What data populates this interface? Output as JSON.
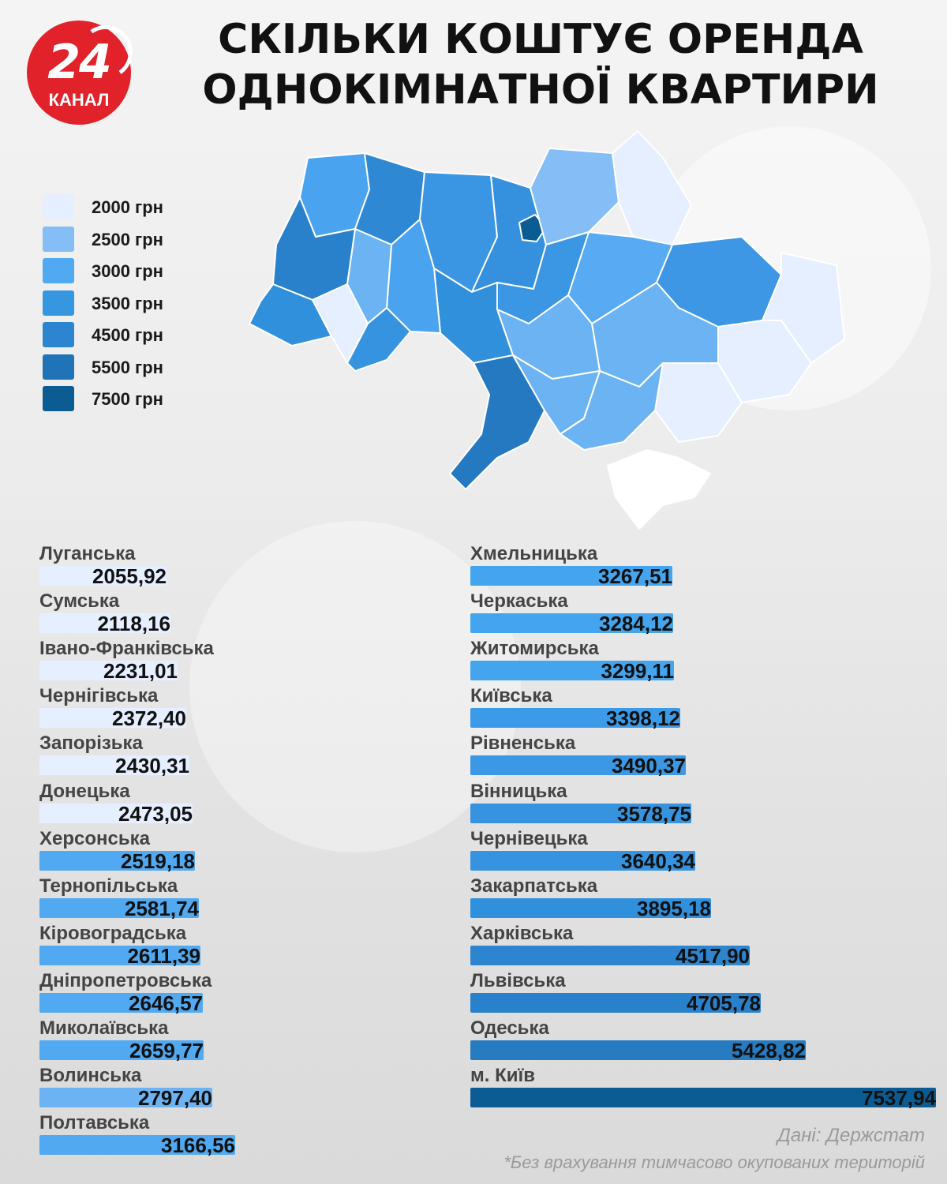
{
  "logo": {
    "number": "24",
    "subtitle": "КАНАЛ"
  },
  "title": {
    "line1": "СКІЛЬКИ КОШТУЄ ОРЕНДА",
    "line2": "ОДНОКІМНАТНОЇ КВАРТИРИ"
  },
  "legend": [
    {
      "label": "2000 грн",
      "color": "#e6efff"
    },
    {
      "label": "2500 грн",
      "color": "#85bdf6"
    },
    {
      "label": "3000 грн",
      "color": "#51a9f1"
    },
    {
      "label": "3500 грн",
      "color": "#3696e0"
    },
    {
      "label": "4500 грн",
      "color": "#2d85cf"
    },
    {
      "label": "5500 грн",
      "color": "#1f73b6"
    },
    {
      "label": "7500 грн",
      "color": "#0b5c92"
    }
  ],
  "chart_data": {
    "type": "bar",
    "orientation": "horizontal",
    "categories": [
      "Луганська",
      "Сумська",
      "Івано-Франківська",
      "Чернігівська",
      "Запорізька",
      "Донецька",
      "Херсонська",
      "Тернопільська",
      "Кіровоградська",
      "Дніпропетровська",
      "Миколаївська",
      "Волинська",
      "Полтавська",
      "Хмельницька",
      "Черкаська",
      "Житомирська",
      "Київська",
      "Рівненська",
      "Вінницька",
      "Чернівецька",
      "Закарпатська",
      "Харківська",
      "Львівська",
      "Одеська",
      "м. Київ"
    ],
    "values": [
      2055.92,
      2118.16,
      2231.01,
      2372.4,
      2430.31,
      2473.05,
      2519.18,
      2581.74,
      2611.39,
      2646.57,
      2659.77,
      2797.4,
      3166.56,
      3267.51,
      3284.12,
      3299.11,
      3398.12,
      3490.37,
      3578.75,
      3640.34,
      3895.18,
      4517.9,
      4705.78,
      5428.82,
      7537.94
    ],
    "value_labels": [
      "2055,92",
      "2118,16",
      "2231,01",
      "2372,40",
      "2430,31",
      "2473,05",
      "2519,18",
      "2581,74",
      "2611,39",
      "2646,57",
      "2659,77",
      "2797,40",
      "3166,56",
      "3267,51",
      "3284,12",
      "3299,11",
      "3398,12",
      "3490,37",
      "3578,75",
      "3640,34",
      "3895,18",
      "4517,90",
      "4705,78",
      "5428,82",
      "7537,94"
    ],
    "bar_colors": [
      "#e6efff",
      "#e6efff",
      "#e6efff",
      "#e6efff",
      "#e6efff",
      "#e6efff",
      "#51a9f1",
      "#51a9f1",
      "#51a9f1",
      "#51a9f1",
      "#51a9f1",
      "#6cb3f4",
      "#51a9f1",
      "#44a4ee",
      "#44a4ee",
      "#44a4ee",
      "#3c9be8",
      "#3a98e5",
      "#3693e0",
      "#3693e0",
      "#3190dc",
      "#2d85cf",
      "#2a81cb",
      "#267bc1",
      "#0b5c92"
    ],
    "title": "СКІЛЬКИ КОШТУЄ ОРЕНДА ОДНОКІМНАТНОЇ КВАРТИРИ"
  },
  "map": {
    "region_colors": {
      "volyn": "#4aa3ee",
      "rivne": "#2f88d3",
      "zhytomyr": "#3a95e2",
      "kyivobl": "#3591de",
      "kyivcity": "#0b5c92",
      "chernihiv": "#85bdf6",
      "sumy": "#e6efff",
      "kharkiv": "#3d97e5",
      "luhansk": "#e6efff",
      "donetsk": "#e6efff",
      "zaporizhzhia": "#e6efff",
      "dnipro": "#6cb3f4",
      "poltava": "#58abf2",
      "cherkasy": "#3b96e4",
      "kirovohrad": "#6cb3f4",
      "vinnytsia": "#3090dc",
      "khmelnytskyi": "#4aa3ee",
      "ternopil": "#6cb3f4",
      "lviv": "#2a81cb",
      "zakarpattia": "#3190dc",
      "ivanofrankivsk": "#e6efff",
      "chernivtsi": "#3693e0",
      "odesa": "#2479c0",
      "mykolaiv": "#6cb3f4",
      "kherson": "#6cb3f4",
      "crimea": "#ffffff"
    }
  },
  "source": "Дані: Держстат",
  "footnote": "*Без врахування тимчасово окупованих територій"
}
